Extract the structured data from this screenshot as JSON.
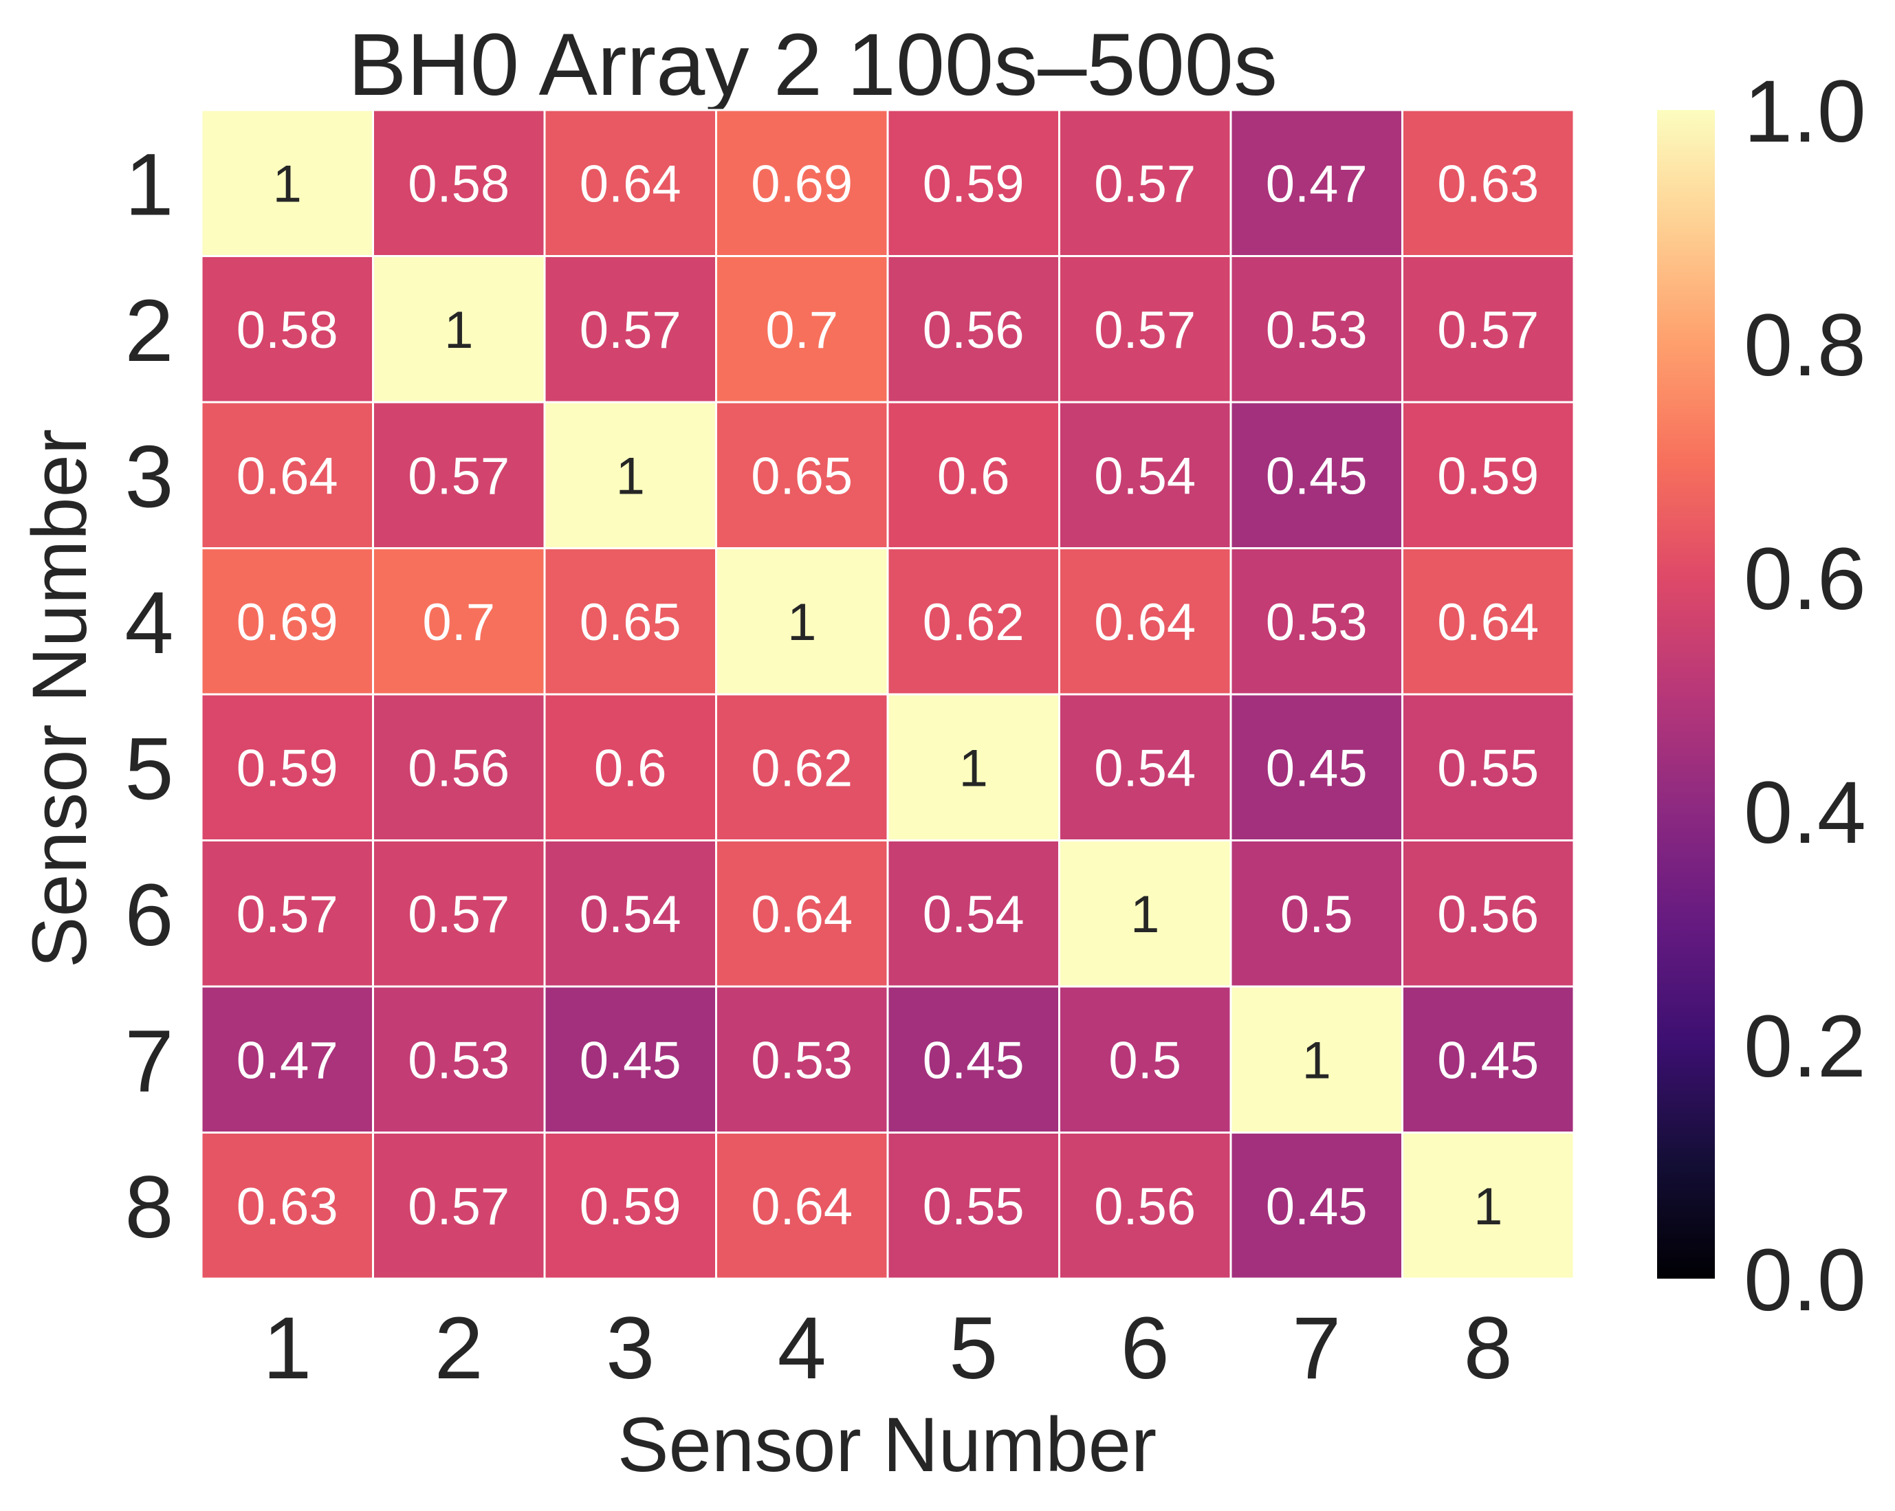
{
  "chart_data": {
    "type": "heatmap",
    "title": "BH0 Array 2 100s–500s",
    "xlabel": "Sensor Number",
    "ylabel": "Sensor Number",
    "x_categories": [
      "1",
      "2",
      "3",
      "4",
      "5",
      "6",
      "7",
      "8"
    ],
    "y_categories": [
      "1",
      "2",
      "3",
      "4",
      "5",
      "6",
      "7",
      "8"
    ],
    "values": [
      [
        1,
        0.58,
        0.64,
        0.69,
        0.59,
        0.57,
        0.47,
        0.63
      ],
      [
        0.58,
        1,
        0.57,
        0.7,
        0.56,
        0.57,
        0.53,
        0.57
      ],
      [
        0.64,
        0.57,
        1,
        0.65,
        0.6,
        0.54,
        0.45,
        0.59
      ],
      [
        0.69,
        0.7,
        0.65,
        1,
        0.62,
        0.64,
        0.53,
        0.64
      ],
      [
        0.59,
        0.56,
        0.6,
        0.62,
        1,
        0.54,
        0.45,
        0.55
      ],
      [
        0.57,
        0.57,
        0.54,
        0.64,
        0.54,
        1,
        0.5,
        0.56
      ],
      [
        0.47,
        0.53,
        0.45,
        0.53,
        0.45,
        0.5,
        1,
        0.45
      ],
      [
        0.63,
        0.57,
        0.59,
        0.64,
        0.55,
        0.56,
        0.45,
        1
      ]
    ],
    "colorbar": {
      "colormap": "magma",
      "vmin": 0.0,
      "vmax": 1.0,
      "ticks": [
        "0.0",
        "0.2",
        "0.4",
        "0.6",
        "0.8",
        "1.0"
      ]
    },
    "annotations": true,
    "grid": false
  }
}
